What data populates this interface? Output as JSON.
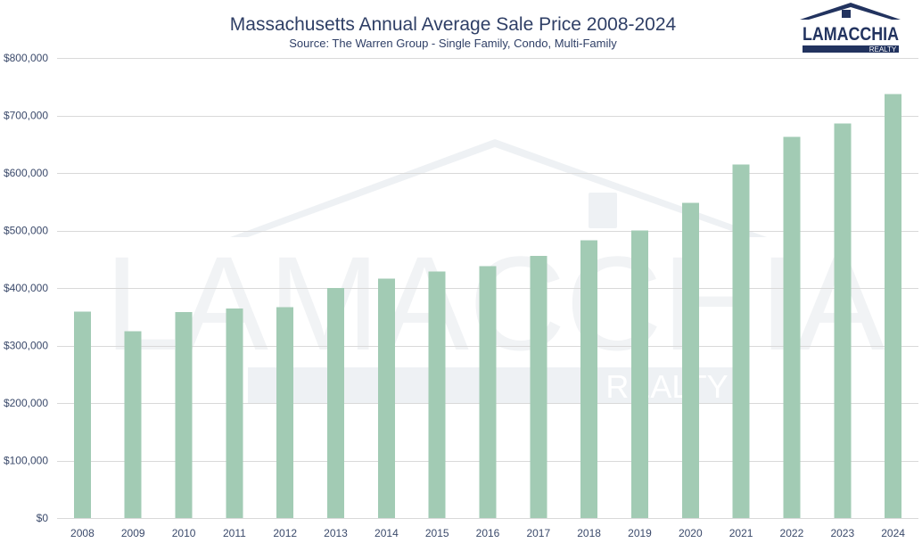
{
  "logo": {
    "text": "LAMACCHIA",
    "subtext": "REALTY",
    "color": "#22335f"
  },
  "watermark": {
    "text": "LAMACCHIA",
    "subtext": "REALTY"
  },
  "chart_data": {
    "type": "bar",
    "title": "Massachusetts Annual Average Sale Price 2008-2024",
    "subtitle": "Source: The Warren Group - Single Family, Condo, Multi-Family",
    "xlabel": "",
    "ylabel": "",
    "ylim": [
      0,
      800000
    ],
    "yticks": [
      0,
      100000,
      200000,
      300000,
      400000,
      500000,
      600000,
      700000,
      800000
    ],
    "ytick_labels": [
      "$0",
      "$100,000",
      "$200,000",
      "$300,000",
      "$400,000",
      "$500,000",
      "$600,000",
      "$700,000",
      "$800,000"
    ],
    "grid": true,
    "legend": "none",
    "bar_color": "#a2cbb4",
    "categories": [
      "2008",
      "2009",
      "2010",
      "2011",
      "2012",
      "2013",
      "2014",
      "2015",
      "2016",
      "2017",
      "2018",
      "2019",
      "2020",
      "2021",
      "2022",
      "2023",
      "2024"
    ],
    "values": [
      359000,
      325000,
      358000,
      364000,
      367000,
      400000,
      416000,
      429000,
      438000,
      456000,
      483000,
      500000,
      548000,
      615000,
      663000,
      686000,
      737000
    ]
  }
}
